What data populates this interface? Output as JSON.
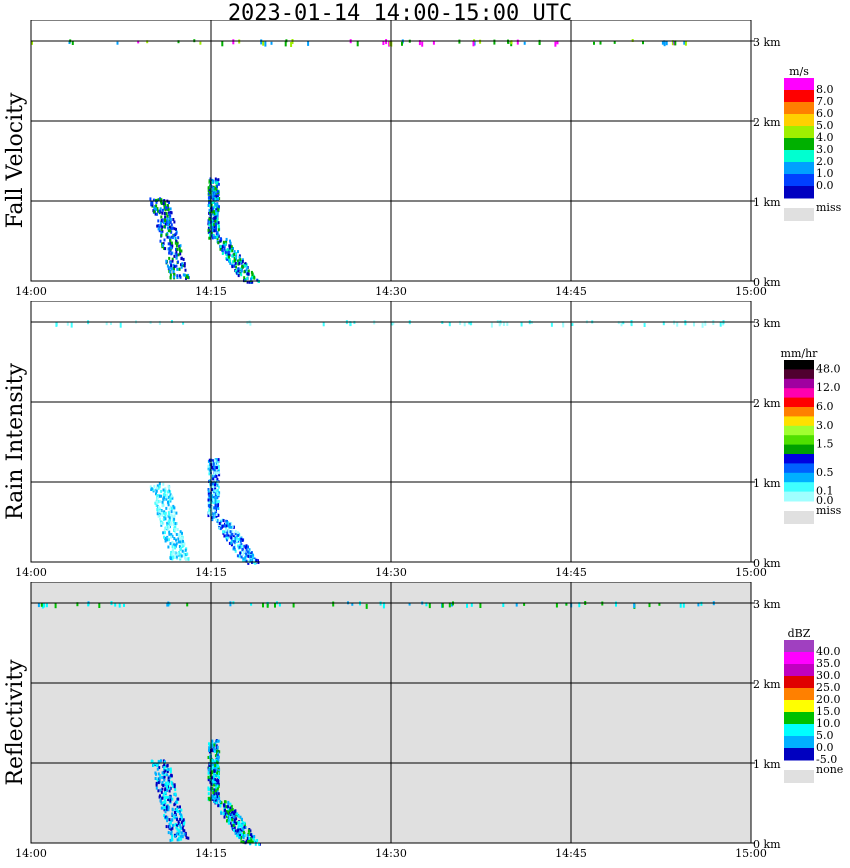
{
  "title": "2023-01-14   14:00-15:00 UTC",
  "x_ticks": [
    "14:00",
    "14:15",
    "14:30",
    "14:45",
    "15:00"
  ],
  "y_ticks": [
    "0 km",
    "1 km",
    "2 km",
    "3 km"
  ],
  "panels": [
    {
      "label": "Fall Velocity",
      "unit": "m/s",
      "background": "#ffffff",
      "legend": [
        {
          "label": "8.0",
          "color": "#ff00ff"
        },
        {
          "label": "7.0",
          "color": "#ff0000"
        },
        {
          "label": "6.0",
          "color": "#ff7f00"
        },
        {
          "label": "5.0",
          "color": "#ffd000"
        },
        {
          "label": "4.0",
          "color": "#9fef00"
        },
        {
          "label": "3.0",
          "color": "#00b000"
        },
        {
          "label": "2.0",
          "color": "#00ffd0"
        },
        {
          "label": "1.0",
          "color": "#00a0ff"
        },
        {
          "label": "0.0",
          "color": "#0040ff"
        },
        {
          "label": "",
          "color": "#0000c0"
        }
      ],
      "miss_label": "miss"
    },
    {
      "label": "Rain Intensity",
      "unit": "mm/hr",
      "background": "#ffffff",
      "legend": [
        {
          "label": "48.0",
          "color": "#000000"
        },
        {
          "label": "",
          "color": "#500030"
        },
        {
          "label": "12.0",
          "color": "#a000a0"
        },
        {
          "label": "",
          "color": "#ff00b0"
        },
        {
          "label": "6.0",
          "color": "#ff0000"
        },
        {
          "label": "",
          "color": "#ff7f00"
        },
        {
          "label": "3.0",
          "color": "#ffe000"
        },
        {
          "label": "",
          "color": "#a0ff30"
        },
        {
          "label": "1.5",
          "color": "#50e000"
        },
        {
          "label": "",
          "color": "#00a000"
        },
        {
          "label": "",
          "color": "#0000e0"
        },
        {
          "label": "0.5",
          "color": "#0060ff"
        },
        {
          "label": "",
          "color": "#00b0ff"
        },
        {
          "label": "0.1",
          "color": "#40ffff"
        },
        {
          "label": "0.0",
          "color": "#a0ffff"
        }
      ],
      "miss_label": "miss"
    },
    {
      "label": "Reflectivity",
      "unit": "dBZ",
      "background": "#e0e0e0",
      "legend": [
        {
          "label": "40.0",
          "color": "#a040c0"
        },
        {
          "label": "35.0",
          "color": "#ff00ff"
        },
        {
          "label": "30.0",
          "color": "#c000c0"
        },
        {
          "label": "25.0",
          "color": "#e00000"
        },
        {
          "label": "20.0",
          "color": "#ff8000"
        },
        {
          "label": "15.0",
          "color": "#ffff00"
        },
        {
          "label": "10.0",
          "color": "#00c000"
        },
        {
          "label": "5.0",
          "color": "#00ffff"
        },
        {
          "label": "0.0",
          "color": "#00b0ff"
        },
        {
          "label": "-5.0",
          "color": "#0000c0"
        }
      ],
      "miss_label": "none"
    }
  ],
  "chart_data": [
    {
      "type": "heatmap",
      "title": "Fall Velocity",
      "ylabel": "Fall Velocity",
      "colorbar_unit": "m/s",
      "x_range": [
        "14:00",
        "15:00"
      ],
      "y_range_km": [
        0,
        3.1
      ],
      "features": [
        {
          "name": "echo-a",
          "t_start_min": 10.0,
          "t_end_min": 13.5,
          "z_bottom_km": 0.05,
          "z_top_km": 1.05,
          "value_ms": 1.5
        },
        {
          "name": "echo-b",
          "t_start_min": 14.5,
          "t_end_min": 19.0,
          "z_bottom_km": 0.0,
          "z_top_km": 1.3,
          "value_ms": 1.5
        },
        {
          "name": "cloud-top-dots",
          "z_km": 3.0,
          "value_ms": 3.0
        }
      ]
    },
    {
      "type": "heatmap",
      "title": "Rain Intensity",
      "ylabel": "Rain Intensity",
      "colorbar_unit": "mm/hr",
      "x_range": [
        "14:00",
        "15:00"
      ],
      "y_range_km": [
        0,
        3.1
      ],
      "features": [
        {
          "name": "echo-a",
          "t_start_min": 10.0,
          "t_end_min": 13.5,
          "z_bottom_km": 0.05,
          "z_top_km": 1.0,
          "value_mmhr": 0.1
        },
        {
          "name": "echo-b",
          "t_start_min": 14.5,
          "t_end_min": 19.0,
          "z_bottom_km": 0.0,
          "z_top_km": 1.3,
          "value_mmhr": 0.3
        },
        {
          "name": "cloud-top-dots",
          "z_km": 3.0,
          "value_mmhr": 0.1
        }
      ]
    },
    {
      "type": "heatmap",
      "title": "Reflectivity",
      "ylabel": "Reflectivity",
      "colorbar_unit": "dBZ",
      "x_range": [
        "14:00",
        "15:00"
      ],
      "y_range_km": [
        0,
        3.1
      ],
      "features": [
        {
          "name": "echo-a",
          "t_start_min": 10.0,
          "t_end_min": 13.5,
          "z_bottom_km": 0.05,
          "z_top_km": 1.05,
          "value_dbz": 0.0
        },
        {
          "name": "echo-b",
          "t_start_min": 14.5,
          "t_end_min": 19.0,
          "z_bottom_km": 0.0,
          "z_top_km": 1.3,
          "value_dbz": 2.0
        },
        {
          "name": "cloud-top-dots",
          "z_km": 3.0,
          "value_dbz": 5.0
        }
      ]
    }
  ]
}
